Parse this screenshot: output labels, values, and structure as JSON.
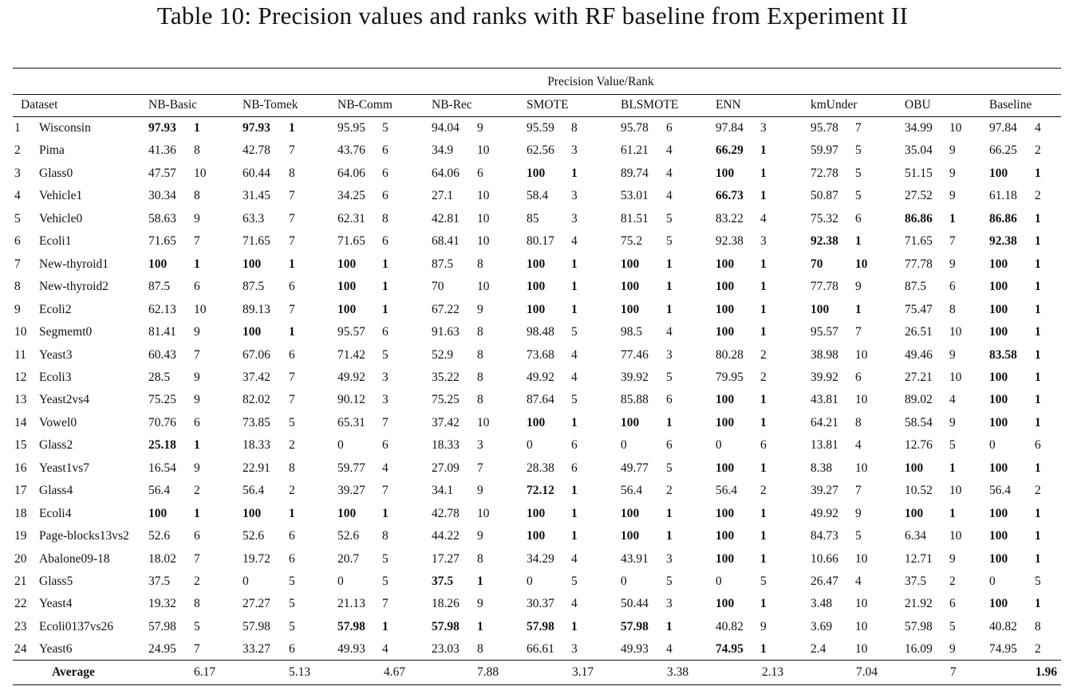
{
  "title": "Table 10: Precision values and ranks with RF baseline from Experiment II",
  "super_header": "Precision Value/Rank",
  "dataset_header": "Dataset",
  "columns": [
    "NB-Basic",
    "NB-Tomek",
    "NB-Comm",
    "NB-Rec",
    "SMOTE",
    "BLSMOTE",
    "ENN",
    "kmUnder",
    "OBU",
    "Baseline"
  ],
  "rows": [
    {
      "n": "1",
      "name": "Wisconsin",
      "vals": [
        "97.93",
        "97.93",
        "95.95",
        "94.04",
        "95.59",
        "95.78",
        "97.84",
        "95.78",
        "34.99",
        "97.84"
      ],
      "ranks": [
        "1",
        "1",
        "5",
        "9",
        "8",
        "6",
        "3",
        "7",
        "10",
        "4"
      ],
      "bold": [
        true,
        true,
        false,
        false,
        false,
        false,
        false,
        false,
        false,
        false
      ]
    },
    {
      "n": "2",
      "name": "Pima",
      "vals": [
        "41.36",
        "42.78",
        "43.76",
        "34.9",
        "62.56",
        "61.21",
        "66.29",
        "59.97",
        "35.04",
        "66.25"
      ],
      "ranks": [
        "8",
        "7",
        "6",
        "10",
        "3",
        "4",
        "1",
        "5",
        "9",
        "2"
      ],
      "bold": [
        false,
        false,
        false,
        false,
        false,
        false,
        true,
        false,
        false,
        false
      ]
    },
    {
      "n": "3",
      "name": "Glass0",
      "vals": [
        "47.57",
        "60.44",
        "64.06",
        "64.06",
        "100",
        "89.74",
        "100",
        "72.78",
        "51.15",
        "100"
      ],
      "ranks": [
        "10",
        "8",
        "6",
        "6",
        "1",
        "4",
        "1",
        "5",
        "9",
        "1"
      ],
      "bold": [
        false,
        false,
        false,
        false,
        true,
        false,
        true,
        false,
        false,
        true
      ]
    },
    {
      "n": "4",
      "name": "Vehicle1",
      "vals": [
        "30.34",
        "31.45",
        "34.25",
        "27.1",
        "58.4",
        "53.01",
        "66.73",
        "50.87",
        "27.52",
        "61.18"
      ],
      "ranks": [
        "8",
        "7",
        "6",
        "10",
        "3",
        "4",
        "1",
        "5",
        "9",
        "2"
      ],
      "bold": [
        false,
        false,
        false,
        false,
        false,
        false,
        true,
        false,
        false,
        false
      ]
    },
    {
      "n": "5",
      "name": "Vehicle0",
      "vals": [
        "58.63",
        "63.3",
        "62.31",
        "42.81",
        "85",
        "81.51",
        "83.22",
        "75.32",
        "86.86",
        "86.86"
      ],
      "ranks": [
        "9",
        "7",
        "8",
        "10",
        "3",
        "5",
        "4",
        "6",
        "1",
        "1"
      ],
      "bold": [
        false,
        false,
        false,
        false,
        false,
        false,
        false,
        false,
        true,
        true
      ]
    },
    {
      "n": "6",
      "name": "Ecoli1",
      "vals": [
        "71.65",
        "71.65",
        "71.65",
        "68.41",
        "80.17",
        "75.2",
        "92.38",
        "92.38",
        "71.65",
        "92.38"
      ],
      "ranks": [
        "7",
        "7",
        "6",
        "10",
        "4",
        "5",
        "3",
        "1",
        "7",
        "1"
      ],
      "bold": [
        false,
        false,
        false,
        false,
        false,
        false,
        false,
        true,
        false,
        true
      ]
    },
    {
      "n": "7",
      "name": "New-thyroid1",
      "vals": [
        "100",
        "100",
        "100",
        "87.5",
        "100",
        "100",
        "100",
        "70",
        "77.78",
        "100"
      ],
      "ranks": [
        "1",
        "1",
        "1",
        "8",
        "1",
        "1",
        "1",
        "10",
        "9",
        "1"
      ],
      "bold": [
        true,
        true,
        true,
        false,
        true,
        true,
        true,
        true,
        false,
        true
      ]
    },
    {
      "n": "8",
      "name": "New-thyroid2",
      "vals": [
        "87.5",
        "87.5",
        "100",
        "70",
        "100",
        "100",
        "100",
        "77.78",
        "87.5",
        "100"
      ],
      "ranks": [
        "6",
        "6",
        "1",
        "10",
        "1",
        "1",
        "1",
        "9",
        "6",
        "1"
      ],
      "bold": [
        false,
        false,
        true,
        false,
        true,
        true,
        true,
        false,
        false,
        true
      ]
    },
    {
      "n": "9",
      "name": "Ecoli2",
      "vals": [
        "62.13",
        "89.13",
        "100",
        "67.22",
        "100",
        "100",
        "100",
        "100",
        "75.47",
        "100"
      ],
      "ranks": [
        "10",
        "7",
        "1",
        "9",
        "1",
        "1",
        "1",
        "1",
        "8",
        "1"
      ],
      "bold": [
        false,
        false,
        true,
        false,
        true,
        true,
        true,
        true,
        false,
        true
      ]
    },
    {
      "n": "10",
      "name": "Segmemt0",
      "vals": [
        "81.41",
        "100",
        "95.57",
        "91.63",
        "98.48",
        "98.5",
        "100",
        "95.57",
        "26.51",
        "100"
      ],
      "ranks": [
        "9",
        "1",
        "6",
        "8",
        "5",
        "4",
        "1",
        "7",
        "10",
        "1"
      ],
      "bold": [
        false,
        true,
        false,
        false,
        false,
        false,
        true,
        false,
        false,
        true
      ]
    },
    {
      "n": "11",
      "name": "Yeast3",
      "vals": [
        "60.43",
        "67.06",
        "71.42",
        "52.9",
        "73.68",
        "77.46",
        "80.28",
        "38.98",
        "49.46",
        "83.58"
      ],
      "ranks": [
        "7",
        "6",
        "5",
        "8",
        "4",
        "3",
        "2",
        "10",
        "9",
        "1"
      ],
      "bold": [
        false,
        false,
        false,
        false,
        false,
        false,
        false,
        false,
        false,
        true
      ]
    },
    {
      "n": "12",
      "name": "Ecoli3",
      "vals": [
        "28.5",
        "37.42",
        "49.92",
        "35.22",
        "49.92",
        "39.92",
        "79.95",
        "39.92",
        "27.21",
        "100"
      ],
      "ranks": [
        "9",
        "7",
        "3",
        "8",
        "4",
        "5",
        "2",
        "6",
        "10",
        "1"
      ],
      "bold": [
        false,
        false,
        false,
        false,
        false,
        false,
        false,
        false,
        false,
        true
      ]
    },
    {
      "n": "13",
      "name": "Yeast2vs4",
      "vals": [
        "75.25",
        "82.02",
        "90.12",
        "75.25",
        "87.64",
        "85.88",
        "100",
        "43.81",
        "89.02",
        "100"
      ],
      "ranks": [
        "9",
        "7",
        "3",
        "8",
        "5",
        "6",
        "1",
        "10",
        "4",
        "1"
      ],
      "bold": [
        false,
        false,
        false,
        false,
        false,
        false,
        true,
        false,
        false,
        true
      ]
    },
    {
      "n": "14",
      "name": "Vowel0",
      "vals": [
        "70.76",
        "73.85",
        "65.31",
        "37.42",
        "100",
        "100",
        "100",
        "64.21",
        "58.54",
        "100"
      ],
      "ranks": [
        "6",
        "5",
        "7",
        "10",
        "1",
        "1",
        "1",
        "8",
        "9",
        "1"
      ],
      "bold": [
        false,
        false,
        false,
        false,
        true,
        true,
        true,
        false,
        false,
        true
      ]
    },
    {
      "n": "15",
      "name": "Glass2",
      "vals": [
        "25.18",
        "18.33",
        "0",
        "18.33",
        "0",
        "0",
        "0",
        "13.81",
        "12.76",
        "0"
      ],
      "ranks": [
        "1",
        "2",
        "6",
        "3",
        "6",
        "6",
        "6",
        "4",
        "5",
        "6"
      ],
      "bold": [
        true,
        false,
        false,
        false,
        false,
        false,
        false,
        false,
        false,
        false
      ]
    },
    {
      "n": "16",
      "name": "Yeast1vs7",
      "vals": [
        "16.54",
        "22.91",
        "59.77",
        "27.09",
        "28.38",
        "49.77",
        "100",
        "8.38",
        "100",
        "100"
      ],
      "ranks": [
        "9",
        "8",
        "4",
        "7",
        "6",
        "5",
        "1",
        "10",
        "1",
        "1"
      ],
      "bold": [
        false,
        false,
        false,
        false,
        false,
        false,
        true,
        false,
        true,
        true
      ]
    },
    {
      "n": "17",
      "name": "Glass4",
      "vals": [
        "56.4",
        "56.4",
        "39.27",
        "34.1",
        "72.12",
        "56.4",
        "56.4",
        "39.27",
        "10.52",
        "56.4"
      ],
      "ranks": [
        "2",
        "2",
        "7",
        "9",
        "1",
        "2",
        "2",
        "7",
        "10",
        "2"
      ],
      "bold": [
        false,
        false,
        false,
        false,
        true,
        false,
        false,
        false,
        false,
        false
      ]
    },
    {
      "n": "18",
      "name": "Ecoli4",
      "vals": [
        "100",
        "100",
        "100",
        "42.78",
        "100",
        "100",
        "100",
        "49.92",
        "100",
        "100"
      ],
      "ranks": [
        "1",
        "1",
        "1",
        "10",
        "1",
        "1",
        "1",
        "9",
        "1",
        "1"
      ],
      "bold": [
        true,
        true,
        true,
        false,
        true,
        true,
        true,
        false,
        true,
        true
      ]
    },
    {
      "n": "19",
      "name": "Page-blocks13vs2",
      "vals": [
        "52.6",
        "52.6",
        "52.6",
        "44.22",
        "100",
        "100",
        "100",
        "84.73",
        "6.34",
        "100"
      ],
      "ranks": [
        "6",
        "6",
        "8",
        "9",
        "1",
        "1",
        "1",
        "5",
        "10",
        "1"
      ],
      "bold": [
        false,
        false,
        false,
        false,
        true,
        true,
        true,
        false,
        false,
        true
      ]
    },
    {
      "n": "20",
      "name": "Abalone09-18",
      "vals": [
        "18.02",
        "19.72",
        "20.7",
        "17.27",
        "34.29",
        "43.91",
        "100",
        "10.66",
        "12.71",
        "100"
      ],
      "ranks": [
        "7",
        "6",
        "5",
        "8",
        "4",
        "3",
        "1",
        "10",
        "9",
        "1"
      ],
      "bold": [
        false,
        false,
        false,
        false,
        false,
        false,
        true,
        false,
        false,
        true
      ]
    },
    {
      "n": "21",
      "name": "Glass5",
      "vals": [
        "37.5",
        "0",
        "0",
        "37.5",
        "0",
        "0",
        "0",
        "26.47",
        "37.5",
        "0"
      ],
      "ranks": [
        "2",
        "5",
        "5",
        "1",
        "5",
        "5",
        "5",
        "4",
        "2",
        "5"
      ],
      "bold": [
        false,
        false,
        false,
        true,
        false,
        false,
        false,
        false,
        false,
        false
      ]
    },
    {
      "n": "22",
      "name": "Yeast4",
      "vals": [
        "19.32",
        "27.27",
        "21.13",
        "18.26",
        "30.37",
        "50.44",
        "100",
        "3.48",
        "21.92",
        "100"
      ],
      "ranks": [
        "8",
        "5",
        "7",
        "9",
        "4",
        "3",
        "1",
        "10",
        "6",
        "1"
      ],
      "bold": [
        false,
        false,
        false,
        false,
        false,
        false,
        true,
        false,
        false,
        true
      ]
    },
    {
      "n": "23",
      "name": "Ecoli0137vs26",
      "vals": [
        "57.98",
        "57.98",
        "57.98",
        "57.98",
        "57.98",
        "57.98",
        "40.82",
        "3.69",
        "57.98",
        "40.82"
      ],
      "ranks": [
        "5",
        "5",
        "1",
        "1",
        "1",
        "1",
        "9",
        "10",
        "5",
        "8"
      ],
      "bold": [
        false,
        false,
        true,
        true,
        true,
        true,
        false,
        false,
        false,
        false
      ]
    },
    {
      "n": "24",
      "name": "Yeast6",
      "vals": [
        "24.95",
        "33.27",
        "49.93",
        "23.03",
        "66.61",
        "49.93",
        "74.95",
        "2.4",
        "16.09",
        "74.95"
      ],
      "ranks": [
        "7",
        "6",
        "4",
        "8",
        "3",
        "4",
        "1",
        "10",
        "9",
        "2"
      ],
      "bold": [
        false,
        false,
        false,
        false,
        false,
        false,
        true,
        false,
        false,
        false
      ]
    }
  ],
  "average": {
    "label": "Average",
    "ranks": [
      "6.17",
      "5.13",
      "4.67",
      "7.88",
      "3.17",
      "3.38",
      "2.13",
      "7.04",
      "7",
      "1.96"
    ],
    "bold": [
      false,
      false,
      false,
      false,
      false,
      false,
      false,
      false,
      false,
      true
    ]
  }
}
